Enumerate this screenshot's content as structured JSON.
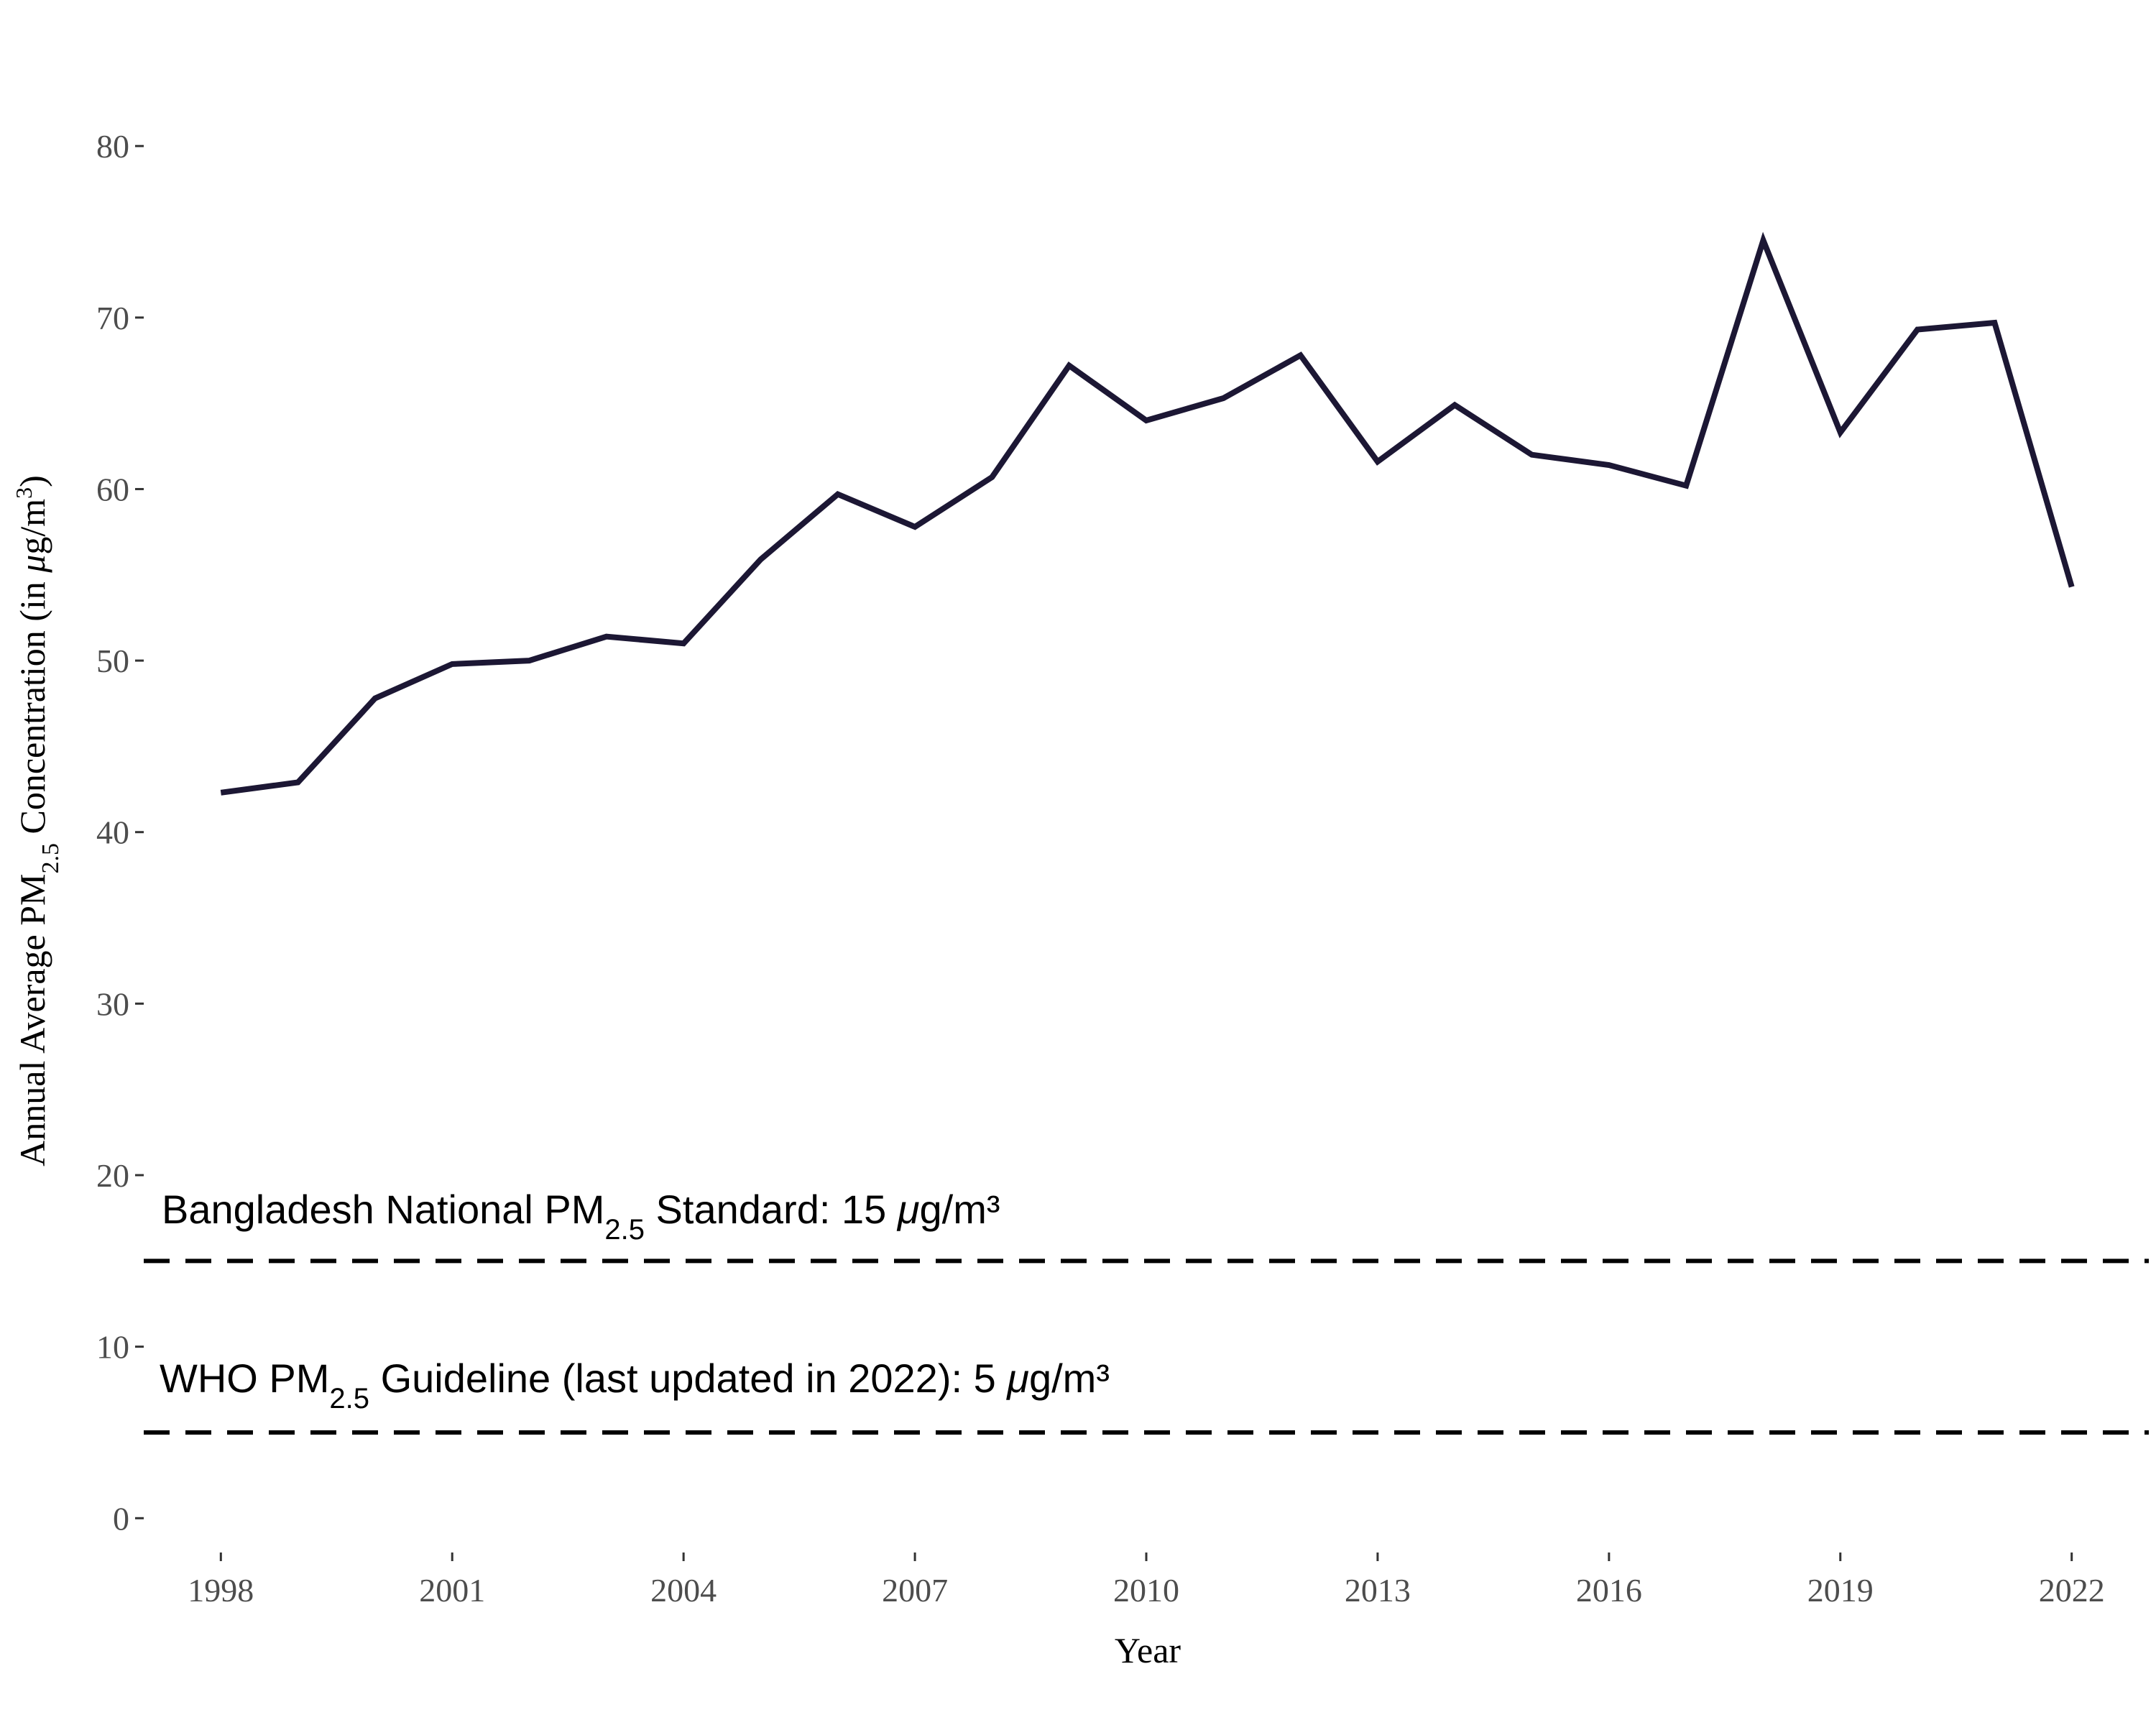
{
  "chart_data": {
    "type": "line",
    "title": "",
    "xlabel": "Year",
    "ylabel": {
      "prefix": "Annual Average ",
      "pm": "PM",
      "pm_sub": "2.5",
      "middle": " Concentration (in ",
      "mu": "μ",
      "unit": "g/m",
      "unit_sup": "3",
      "close": ")"
    },
    "xlim": [
      1997,
      2023
    ],
    "ylim": [
      -2,
      86
    ],
    "x_ticks": [
      1998,
      2001,
      2004,
      2007,
      2010,
      2013,
      2016,
      2019,
      2022
    ],
    "y_ticks": [
      0,
      10,
      20,
      30,
      40,
      50,
      60,
      70,
      80
    ],
    "grid": false,
    "line_color": "#1c1734",
    "x": [
      1998,
      1999,
      2000,
      2001,
      2002,
      2003,
      2004,
      2005,
      2006,
      2007,
      2008,
      2009,
      2010,
      2011,
      2012,
      2013,
      2014,
      2015,
      2016,
      2017,
      2018,
      2019,
      2020,
      2021,
      2022
    ],
    "values": [
      42.3,
      42.9,
      47.8,
      49.8,
      50.0,
      51.4,
      51.0,
      55.9,
      59.7,
      57.8,
      60.7,
      67.2,
      64.0,
      65.3,
      67.8,
      61.6,
      64.9,
      62.0,
      61.4,
      60.2,
      74.5,
      63.3,
      69.3,
      69.7,
      54.3
    ],
    "reference_lines": [
      {
        "value": 15,
        "color": "#000000",
        "label": {
          "before": "Bangladesh National PM",
          "sub": "2.5",
          "after": " Standard: 15 ",
          "mu": "μ",
          "unit": "g/m³"
        }
      },
      {
        "value": 5,
        "color": "#000000",
        "label": {
          "before": "WHO  PM",
          "sub": "2.5",
          "after": "  Guideline (last updated in 2022): 5 ",
          "mu": "μ",
          "unit": "g/m³"
        }
      }
    ]
  }
}
